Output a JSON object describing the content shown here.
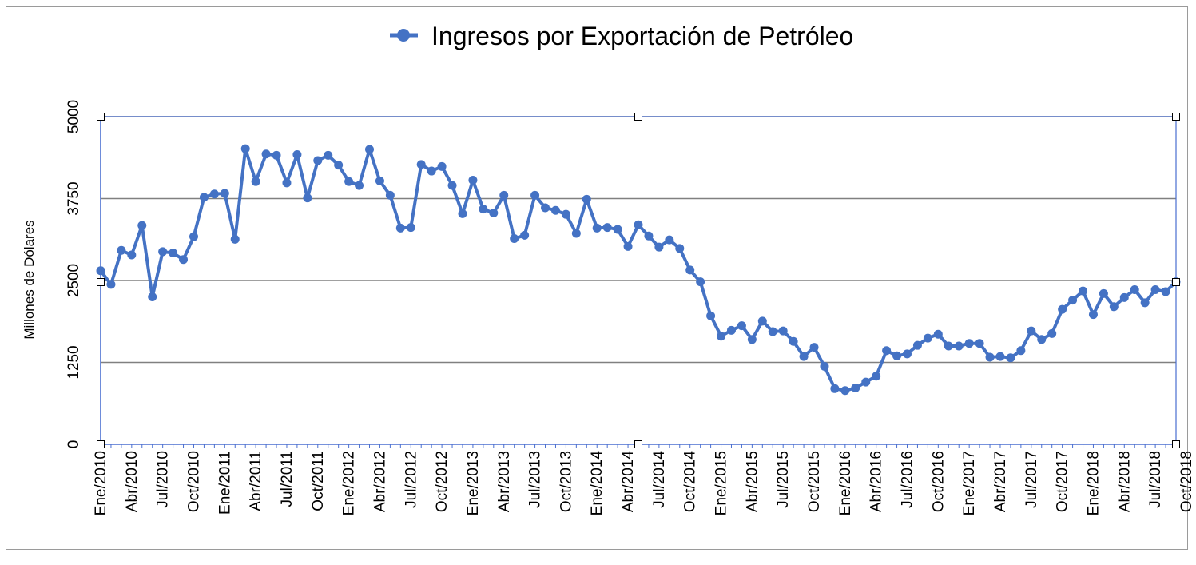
{
  "colors": {
    "series": "#4472C4",
    "grid": "#808080",
    "axis": "#4a6fd0"
  },
  "chart_data": {
    "type": "line",
    "title": "",
    "xlabel": "",
    "ylabel": "Millones de Dólares",
    "ylim": [
      0,
      5000
    ],
    "yticks": [
      0,
      1250,
      2500,
      3750,
      5000
    ],
    "grid": "horizontal",
    "legend_position": "top",
    "x_tick_labels": [
      "Ene/2010",
      "Abr/2010",
      "Jul/2010",
      "Oct/2010",
      "Ene/2011",
      "Abr/2011",
      "Jul/2011",
      "Oct/2011",
      "Ene/2012",
      "Abr/2012",
      "Jul/2012",
      "Oct/2012",
      "Ene/2013",
      "Abr/2013",
      "Jul/2013",
      "Oct/2013",
      "Ene/2014",
      "Abr/2014",
      "Jul/2014",
      "Oct/2014",
      "Ene/2015",
      "Abr/2015",
      "Jul/2015",
      "Oct/2015",
      "Ene/2016",
      "Abr/2016",
      "Jul/2016",
      "Oct/2016",
      "Ene/2017",
      "Abr/2017",
      "Jul/2017",
      "Oct/2017",
      "Ene/2018",
      "Abr/2018",
      "Jul/2018",
      "Oct/2018"
    ],
    "series": [
      {
        "name": "Ingresos por Exportación de Petróleo",
        "values": [
          2650,
          2440,
          2960,
          2890,
          3340,
          2250,
          2940,
          2920,
          2820,
          3170,
          3770,
          3820,
          3830,
          3130,
          4510,
          4010,
          4430,
          4410,
          3990,
          4420,
          3760,
          4330,
          4410,
          4260,
          4010,
          3950,
          4500,
          4020,
          3800,
          3300,
          3310,
          4270,
          4170,
          4240,
          3950,
          3520,
          4030,
          3590,
          3530,
          3800,
          3140,
          3190,
          3800,
          3610,
          3570,
          3510,
          3220,
          3740,
          3300,
          3310,
          3280,
          3020,
          3350,
          3180,
          3010,
          3120,
          2990,
          2660,
          2480,
          1960,
          1650,
          1740,
          1810,
          1600,
          1880,
          1720,
          1730,
          1570,
          1340,
          1480,
          1190,
          850,
          820,
          860,
          950,
          1040,
          1430,
          1350,
          1380,
          1510,
          1620,
          1680,
          1500,
          1500,
          1540,
          1540,
          1330,
          1340,
          1320,
          1430,
          1730,
          1600,
          1690,
          2060,
          2200,
          2340,
          1980,
          2300,
          2100,
          2240,
          2360,
          2160,
          2360,
          2330,
          2480
        ]
      }
    ]
  }
}
